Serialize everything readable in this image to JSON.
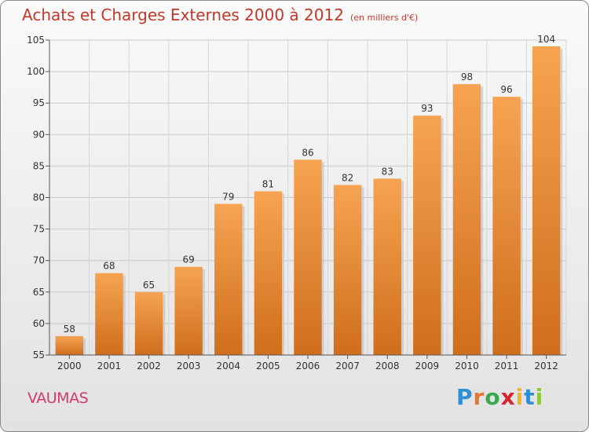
{
  "title": "Achats et Charges Externes 2000 à 2012",
  "unit_note": "(en milliers d'€)",
  "commune": "VAUMAS",
  "brand": {
    "letters": [
      "P",
      "r",
      "o",
      "x",
      "i",
      "t",
      "i"
    ],
    "colors": [
      "#2e8fd6",
      "#e8762c",
      "#3aa84f",
      "#d8242c",
      "#f2b51f",
      "#2e8fd6",
      "#8dc63f"
    ]
  },
  "colors": {
    "bar_top": "#f6a452",
    "bar_bottom": "#cf6e1c",
    "title": "#c0392b",
    "commune": "#d13b6e"
  },
  "chart_data": {
    "type": "bar",
    "title": "Achats et Charges Externes 2000 à 2012",
    "subtitle": "(en milliers d'€)",
    "categories": [
      "2000",
      "2001",
      "2002",
      "2003",
      "2004",
      "2005",
      "2006",
      "2007",
      "2008",
      "2009",
      "2010",
      "2011",
      "2012"
    ],
    "values": [
      58,
      68,
      65,
      69,
      79,
      81,
      86,
      82,
      83,
      93,
      98,
      96,
      104
    ],
    "ylim": [
      55,
      105
    ],
    "yticks": [
      55,
      60,
      65,
      70,
      75,
      80,
      85,
      90,
      95,
      100,
      105
    ],
    "grid": true
  }
}
